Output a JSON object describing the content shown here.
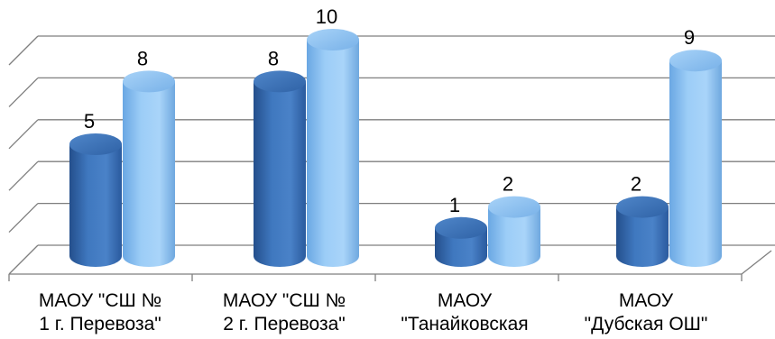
{
  "chart_data": {
    "type": "bar",
    "style": "3d-cylinder",
    "categories": [
      [
        "МАОУ \"СШ №",
        "1 г. Перевоза\""
      ],
      [
        "МАОУ \"СШ №",
        "2 г. Перевоза\""
      ],
      [
        "МАОУ",
        "\"Танайковская"
      ],
      [
        "МАОУ",
        "\"Дубская ОШ\""
      ]
    ],
    "series": [
      {
        "values": [
          5,
          8,
          1,
          2
        ],
        "color": "#3A6FB4"
      },
      {
        "values": [
          8,
          10,
          2,
          9
        ],
        "color": "#7DB6EC"
      }
    ],
    "data_labels": [
      [
        "5",
        "8",
        "1",
        "2"
      ],
      [
        "8",
        "10",
        "2",
        "9"
      ]
    ],
    "ylim": [
      0,
      10
    ],
    "grid": true,
    "legend": "none"
  }
}
